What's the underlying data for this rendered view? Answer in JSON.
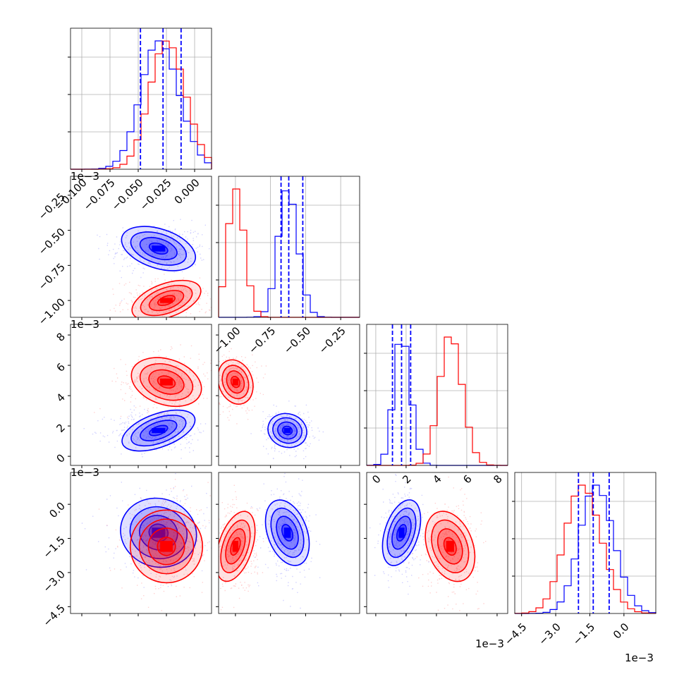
{
  "chart_data": {
    "type": "corner",
    "series_colors": [
      "#0000ff",
      "#ff0000"
    ],
    "grid": true,
    "parameters": [
      {
        "range": [
          -0.11,
          0.015
        ],
        "ticks": [
          -0.1,
          -0.075,
          -0.05,
          -0.025,
          0.0
        ],
        "tick_labels": [
          "−0.100",
          "−0.075",
          "−0.050",
          "−0.025",
          "0.000"
        ],
        "offset": ""
      },
      {
        "range": [
          -1.12,
          -0.115
        ],
        "ticks": [
          -1.0,
          -0.75,
          -0.5,
          -0.25
        ],
        "tick_labels": [
          "−1.00",
          "−0.75",
          "−0.50",
          "−0.25"
        ],
        "offset": "1e−3"
      },
      {
        "range": [
          -0.6,
          8.7
        ],
        "ticks": [
          0,
          2,
          4,
          6,
          8
        ],
        "tick_labels": [
          "0",
          "2",
          "4",
          "6",
          "8"
        ],
        "offset": "1e−3"
      },
      {
        "range": [
          -4.8,
          1.4
        ],
        "ticks": [
          -4.5,
          -3.0,
          -1.5,
          0.0
        ],
        "tick_labels": [
          "−4.5",
          "−3.0",
          "−1.5",
          "0.0"
        ],
        "offset": "1e−3"
      }
    ],
    "series": [
      {
        "means": [
          -0.032,
          -0.63,
          1.7,
          -1.25
        ],
        "sigmas": [
          0.017,
          0.07,
          0.55,
          0.75
        ],
        "quantiles": [
          [
            -0.048,
            -0.028,
            -0.012
          ],
          [
            -0.675,
            -0.62,
            -0.52
          ],
          [
            1.1,
            1.7,
            2.3
          ],
          [
            -2.0,
            -1.35,
            -0.65
          ]
        ]
      },
      {
        "means": [
          -0.025,
          -1.0,
          4.9,
          -1.85
        ],
        "sigmas": [
          0.016,
          0.06,
          0.75,
          0.8
        ],
        "quantiles": []
      }
    ]
  }
}
